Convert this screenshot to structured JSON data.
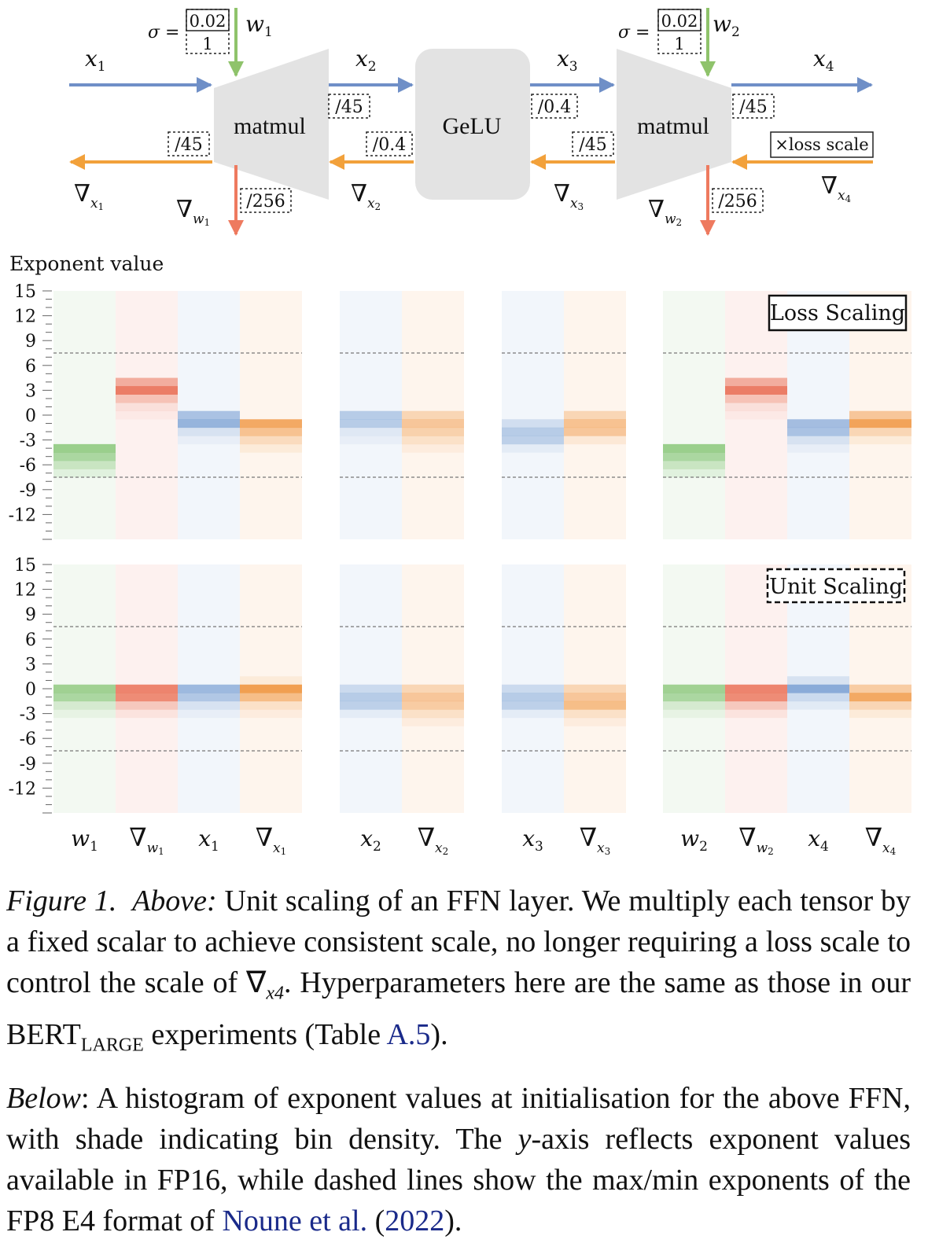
{
  "diagram": {
    "sigma_label": "σ =",
    "init_std": "0.02",
    "init_std_scaled": "1",
    "w1": "w",
    "w1_sub": "1",
    "w2": "w",
    "w2_sub": "2",
    "x_label": "x",
    "grad_symbol": "∇",
    "matmul1": "matmul",
    "gelu": "GeLU",
    "matmul2": "matmul",
    "scales": {
      "fwd_x2": "/45",
      "fwd_x4": "/45",
      "bwd_x1": "/45",
      "bwd_x2": "/0.4",
      "bwd_x3": "/45",
      "bwd_w1": "/256",
      "bwd_w2": "/256",
      "fwd_x3": "/0.4",
      "loss_scale": "×loss scale"
    },
    "colors": {
      "forward": "#6f8fc7",
      "backward": "#f2a13b",
      "weight": "#8fc36b",
      "weight_grad": "#ee7a5f",
      "block": "#e3e3e3"
    }
  },
  "chart_data": {
    "type": "heatmap",
    "ylabel": "Exponent value",
    "yticks": [
      15,
      12,
      9,
      6,
      3,
      0,
      -3,
      -6,
      -9,
      -12
    ],
    "ylim": [
      -15,
      15
    ],
    "fp8_e4_range": [
      -7.5,
      7.5
    ],
    "groups": [
      {
        "columns": [
          {
            "tensor": "w",
            "sub": "1",
            "grad": false,
            "color": "#7cc06a"
          },
          {
            "tensor": "w",
            "sub": "1",
            "grad": true,
            "color": "#e8694d"
          },
          {
            "tensor": "x",
            "sub": "1",
            "grad": false,
            "color": "#6f98cf"
          },
          {
            "tensor": "x",
            "sub": "1",
            "grad": true,
            "color": "#ef8f35"
          }
        ]
      },
      {
        "columns": [
          {
            "tensor": "x",
            "sub": "2",
            "grad": false,
            "color": "#6f98cf"
          },
          {
            "tensor": "x",
            "sub": "2",
            "grad": true,
            "color": "#ef8f35"
          }
        ]
      },
      {
        "columns": [
          {
            "tensor": "x",
            "sub": "3",
            "grad": false,
            "color": "#6f98cf"
          },
          {
            "tensor": "x",
            "sub": "3",
            "grad": true,
            "color": "#ef8f35"
          }
        ]
      },
      {
        "columns": [
          {
            "tensor": "w",
            "sub": "2",
            "grad": false,
            "color": "#7cc06a"
          },
          {
            "tensor": "w",
            "sub": "2",
            "grad": true,
            "color": "#e8694d"
          },
          {
            "tensor": "x",
            "sub": "4",
            "grad": false,
            "color": "#6f98cf"
          },
          {
            "tensor": "x",
            "sub": "4",
            "grad": true,
            "color": "#ef8f35"
          }
        ]
      }
    ],
    "panels": [
      {
        "label": "Loss Scaling",
        "box_style": "solid",
        "bins": [
          [
            [
              -4,
              0.75
            ],
            [
              -5,
              0.6
            ],
            [
              -6,
              0.35
            ],
            [
              -7,
              0.15
            ]
          ],
          [
            [
              4,
              0.5
            ],
            [
              3,
              0.85
            ],
            [
              2,
              0.35
            ],
            [
              1,
              0.12
            ],
            [
              0,
              0.05
            ]
          ],
          [
            [
              0,
              0.55
            ],
            [
              -1,
              0.7
            ],
            [
              -2,
              0.2
            ],
            [
              -3,
              0.08
            ]
          ],
          [
            [
              -1,
              0.75
            ],
            [
              -2,
              0.5
            ],
            [
              -3,
              0.25
            ],
            [
              -4,
              0.1
            ]
          ],
          [
            [
              0,
              0.45
            ],
            [
              -1,
              0.45
            ],
            [
              -2,
              0.15
            ],
            [
              -3,
              0.08
            ]
          ],
          [
            [
              0,
              0.3
            ],
            [
              -1,
              0.45
            ],
            [
              -2,
              0.35
            ],
            [
              -3,
              0.2
            ],
            [
              -4,
              0.08
            ]
          ],
          [
            [
              -1,
              0.25
            ],
            [
              -2,
              0.45
            ],
            [
              -3,
              0.4
            ],
            [
              -4,
              0.1
            ]
          ],
          [
            [
              0,
              0.3
            ],
            [
              -1,
              0.5
            ],
            [
              -2,
              0.45
            ],
            [
              -3,
              0.12
            ]
          ],
          [
            [
              -4,
              0.75
            ],
            [
              -5,
              0.6
            ],
            [
              -6,
              0.35
            ],
            [
              -7,
              0.15
            ]
          ],
          [
            [
              4,
              0.5
            ],
            [
              3,
              0.85
            ],
            [
              2,
              0.35
            ],
            [
              1,
              0.12
            ],
            [
              0,
              0.05
            ]
          ],
          [
            [
              -1,
              0.6
            ],
            [
              -2,
              0.55
            ],
            [
              -3,
              0.2
            ],
            [
              -4,
              0.08
            ]
          ],
          [
            [
              0,
              0.45
            ],
            [
              -1,
              0.8
            ],
            [
              -2,
              0.3
            ],
            [
              -3,
              0.1
            ]
          ]
        ]
      },
      {
        "label": "Unit Scaling",
        "box_style": "dashed",
        "bins": [
          [
            [
              0,
              0.7
            ],
            [
              -1,
              0.6
            ],
            [
              -2,
              0.25
            ],
            [
              -3,
              0.1
            ]
          ],
          [
            [
              0,
              0.8
            ],
            [
              -1,
              0.75
            ],
            [
              -2,
              0.3
            ],
            [
              -3,
              0.1
            ]
          ],
          [
            [
              0,
              0.65
            ],
            [
              -1,
              0.5
            ],
            [
              -2,
              0.2
            ],
            [
              -3,
              0.08
            ]
          ],
          [
            [
              1,
              0.1
            ],
            [
              0,
              0.85
            ],
            [
              -1,
              0.55
            ],
            [
              -2,
              0.2
            ],
            [
              -3,
              0.08
            ]
          ],
          [
            [
              0,
              0.3
            ],
            [
              -1,
              0.45
            ],
            [
              -2,
              0.4
            ],
            [
              -3,
              0.1
            ]
          ],
          [
            [
              0,
              0.3
            ],
            [
              -1,
              0.45
            ],
            [
              -2,
              0.4
            ],
            [
              -3,
              0.2
            ],
            [
              -4,
              0.08
            ]
          ],
          [
            [
              0,
              0.3
            ],
            [
              -1,
              0.45
            ],
            [
              -2,
              0.4
            ],
            [
              -3,
              0.1
            ]
          ],
          [
            [
              0,
              0.3
            ],
            [
              -1,
              0.45
            ],
            [
              -2,
              0.55
            ],
            [
              -3,
              0.2
            ],
            [
              -4,
              0.08
            ]
          ],
          [
            [
              0,
              0.7
            ],
            [
              -1,
              0.6
            ],
            [
              -2,
              0.25
            ],
            [
              -3,
              0.1
            ]
          ],
          [
            [
              0,
              0.8
            ],
            [
              -1,
              0.75
            ],
            [
              -2,
              0.3
            ],
            [
              -3,
              0.1
            ]
          ],
          [
            [
              1,
              0.2
            ],
            [
              0,
              0.8
            ],
            [
              -1,
              0.3
            ],
            [
              -2,
              0.12
            ]
          ],
          [
            [
              0,
              0.4
            ],
            [
              -1,
              0.75
            ],
            [
              -2,
              0.3
            ],
            [
              -3,
              0.1
            ]
          ]
        ]
      }
    ]
  },
  "caption": {
    "fig_label": "Figure 1.",
    "above_label": "Above:",
    "above_text_1": " Unit scaling of an FFN layer. We multiply each tensor by a fixed scalar to achieve consistent scale, no longer requiring a loss scale to control the scale of ∇",
    "above_grad_sub": "x4",
    "above_text_2": ". Hyperparameters here are the same as those in our BERT",
    "bert_sub": "LARGE",
    "above_text_3": " experiments (Table ",
    "table_ref": "A.5",
    "above_text_4": ").",
    "below_label": "Below",
    "below_text_1": ":  A histogram of exponent values at initialisation for the above FFN, with shade indicating bin density. The ",
    "y_axis": "y",
    "below_text_2": "-axis reflects exponent values available in FP16, while dashed lines show the max/min exponents of the FP8 E4 format of ",
    "cite_author": "Noune et al.",
    "cite_open": " (",
    "cite_year": "2022",
    "cite_close": ")."
  }
}
